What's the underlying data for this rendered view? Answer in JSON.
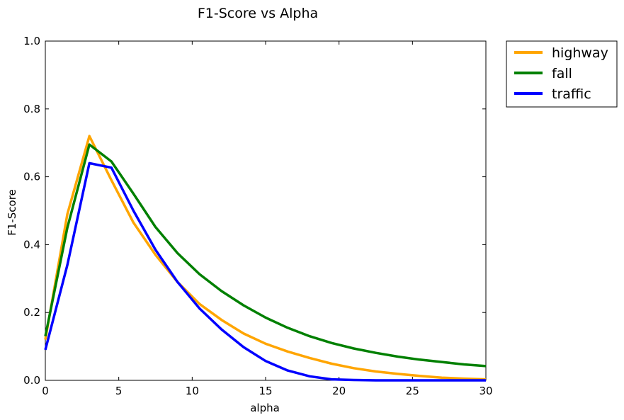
{
  "chart_data": {
    "type": "line",
    "title": "F1-Score vs Alpha",
    "xlabel": "alpha",
    "ylabel": "F1-Score",
    "xlim": [
      0,
      30
    ],
    "ylim": [
      0.0,
      1.0
    ],
    "xticks": [
      "0",
      "5",
      "10",
      "15",
      "20",
      "25",
      "30"
    ],
    "yticks": [
      "0.0",
      "0.2",
      "0.4",
      "0.6",
      "0.8",
      "1.0"
    ],
    "grid": false,
    "legend_position": "outside-top-right",
    "x": [
      0,
      1.5,
      3,
      4.5,
      6,
      7.5,
      9,
      10.5,
      12,
      13.5,
      15,
      16.5,
      18,
      19.5,
      21,
      22.5,
      24,
      25.5,
      27,
      28.5,
      30
    ],
    "series": [
      {
        "name": "highway",
        "color": "#ffa500",
        "values": [
          0.12,
          0.49,
          0.72,
          0.59,
          0.465,
          0.37,
          0.29,
          0.225,
          0.178,
          0.138,
          0.108,
          0.085,
          0.066,
          0.049,
          0.036,
          0.026,
          0.019,
          0.013,
          0.008,
          0.005,
          0.003
        ]
      },
      {
        "name": "fall",
        "color": "#008000",
        "values": [
          0.13,
          0.45,
          0.695,
          0.645,
          0.55,
          0.452,
          0.375,
          0.313,
          0.263,
          0.221,
          0.185,
          0.155,
          0.13,
          0.11,
          0.094,
          0.081,
          0.07,
          0.061,
          0.054,
          0.047,
          0.042
        ]
      },
      {
        "name": "traffic",
        "color": "#0000ff",
        "values": [
          0.09,
          0.34,
          0.64,
          0.627,
          0.5,
          0.385,
          0.29,
          0.212,
          0.15,
          0.098,
          0.057,
          0.029,
          0.012,
          0.003,
          0.001,
          0.0,
          0.0,
          0.0,
          0.0,
          0.0,
          0.0
        ]
      }
    ]
  }
}
